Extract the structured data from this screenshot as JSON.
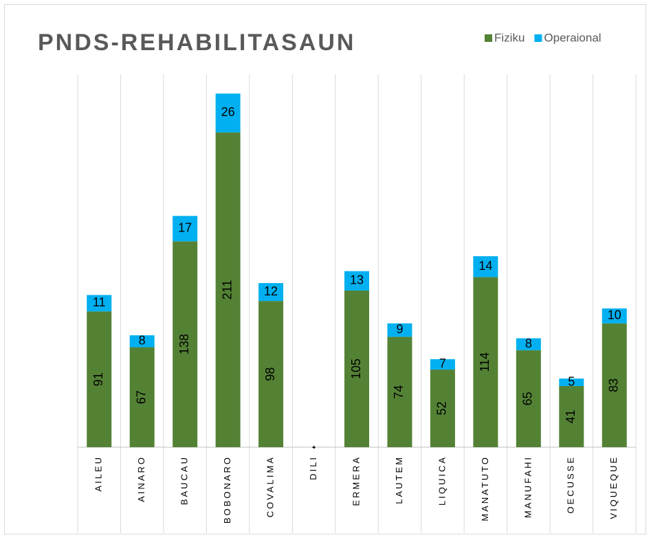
{
  "chart_data": {
    "type": "stacked_bar",
    "title": "PNDS-REHABILITASAUN",
    "categories": [
      "AILEU",
      "AINARO",
      "BAUCAU",
      "BOBONARO",
      "COVALIMA",
      "DILI",
      "ERMERA",
      "LAUTEM",
      "LIQUICA",
      "MANATUTO",
      "MANUFAHI",
      "OECUSSE",
      "VIQUEQUE"
    ],
    "series": [
      {
        "name": "Fiziku",
        "color": "#548235",
        "values": [
          91,
          67,
          138,
          211,
          98,
          0,
          105,
          74,
          52,
          114,
          65,
          41,
          83
        ],
        "value_labels": [
          "91",
          "67",
          "138",
          "211",
          "98",
          "-",
          "105",
          "74",
          "52",
          "114",
          "65",
          "41",
          "83"
        ]
      },
      {
        "name": "Operaional",
        "color": "#00b0f0",
        "values": [
          11,
          8,
          17,
          26,
          12,
          0,
          13,
          9,
          7,
          14,
          8,
          5,
          10
        ],
        "value_labels": [
          "11",
          "8",
          "17",
          "26",
          "12",
          "-",
          "13",
          "9",
          "7",
          "14",
          "8",
          "5",
          "10"
        ]
      }
    ],
    "ylim": [
      0,
      250
    ],
    "legend": "top-right"
  }
}
